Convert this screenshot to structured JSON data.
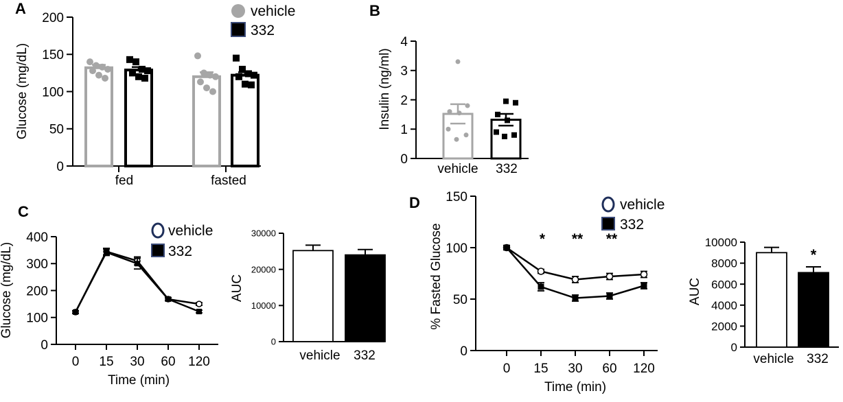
{
  "colors": {
    "vehicle": "#a6a6a6",
    "c332": "#000000",
    "axis": "#000000",
    "vehicle_line": "#1f2f5a"
  },
  "chart_data": [
    {
      "panel": "A",
      "type": "bar",
      "ylabel": "Glucose (mg/dL)",
      "ylim": [
        0,
        200
      ],
      "yticks": [
        "0",
        "50",
        "100",
        "150",
        "200"
      ],
      "categories": [
        "fed",
        "fasted"
      ],
      "legend": [
        "vehicle",
        "332"
      ],
      "legend_position": "top-right",
      "series": [
        {
          "name": "vehicle",
          "values": [
            132,
            120
          ],
          "sem": [
            4,
            6
          ],
          "points": [
            [
              140,
              135,
              133,
              130,
              128,
              122,
              118
            ],
            [
              148,
              125,
              122,
              120,
              113,
              105,
              100
            ]
          ]
        },
        {
          "name": "332",
          "values": [
            129,
            122
          ],
          "sem": [
            4,
            4
          ],
          "points": [
            [
              143,
              140,
              130,
              128,
              125,
              120,
              118
            ],
            [
              145,
              130,
              124,
              122,
              120,
              110,
              109
            ]
          ]
        }
      ]
    },
    {
      "panel": "B",
      "type": "bar",
      "ylabel": "Insulin (ng/ml)",
      "ylim": [
        0,
        4
      ],
      "yticks": [
        "0",
        "1",
        "2",
        "3",
        "4"
      ],
      "categories": [
        "vehicle",
        "332"
      ],
      "values": [
        1.52,
        1.32
      ],
      "sem": [
        0.33,
        0.2
      ],
      "points": [
        [
          3.3,
          1.8,
          1.6,
          1.55,
          1.0,
          0.8,
          0.65
        ],
        [
          1.95,
          1.9,
          1.5,
          1.3,
          0.9,
          0.8,
          0.75
        ]
      ]
    },
    {
      "panel": "C",
      "type": "line",
      "ylabel": "Glucose (mg/dL)",
      "xlabel": "Time (min)",
      "ylim": [
        0,
        400
      ],
      "yticks": [
        "0",
        "100",
        "200",
        "300",
        "400"
      ],
      "x": [
        "0",
        "15",
        "30",
        "60",
        "120"
      ],
      "legend": [
        "vehicle",
        "332"
      ],
      "legend_position": "top-right",
      "series": [
        {
          "name": "vehicle",
          "values": [
            120,
            345,
            310,
            168,
            150
          ],
          "sem": [
            5,
            12,
            15,
            6,
            5
          ]
        },
        {
          "name": "332",
          "values": [
            120,
            342,
            300,
            168,
            122
          ],
          "sem": [
            5,
            12,
            20,
            6,
            5
          ]
        }
      ]
    },
    {
      "panel": "C-AUC",
      "type": "bar",
      "ylabel": "AUC",
      "ylim": [
        0,
        30000
      ],
      "yticks": [
        "0",
        "10000",
        "20000",
        "30000"
      ],
      "categories": [
        "vehicle",
        "332"
      ],
      "values": [
        25200,
        24000
      ],
      "sem": [
        1500,
        1500
      ],
      "fills": [
        "#ffffff",
        "#000000"
      ]
    },
    {
      "panel": "D",
      "type": "line",
      "ylabel": "% Fasted Glucose",
      "xlabel": "Time (min)",
      "ylim": [
        0,
        150
      ],
      "yticks": [
        "0",
        "50",
        "100",
        "150"
      ],
      "x": [
        "0",
        "15",
        "30",
        "60",
        "120"
      ],
      "legend": [
        "vehicle",
        "332"
      ],
      "legend_position": "top-right",
      "significance": [
        "",
        "*",
        "**",
        "**",
        ""
      ],
      "series": [
        {
          "name": "vehicle",
          "values": [
            100,
            77,
            69,
            72,
            74
          ],
          "sem": [
            2,
            2,
            3,
            3,
            3
          ]
        },
        {
          "name": "332",
          "values": [
            100,
            62,
            51,
            53,
            63
          ],
          "sem": [
            2,
            4,
            3,
            3,
            3
          ]
        }
      ]
    },
    {
      "panel": "D-AUC",
      "type": "bar",
      "ylabel": "AUC",
      "ylim": [
        0,
        10000
      ],
      "yticks": [
        "0",
        "2000",
        "4000",
        "6000",
        "8000",
        "10000"
      ],
      "categories": [
        "vehicle",
        "332"
      ],
      "values": [
        9000,
        7100
      ],
      "sem": [
        500,
        550
      ],
      "significance": [
        "",
        "*"
      ],
      "fills": [
        "#ffffff",
        "#000000"
      ]
    }
  ]
}
